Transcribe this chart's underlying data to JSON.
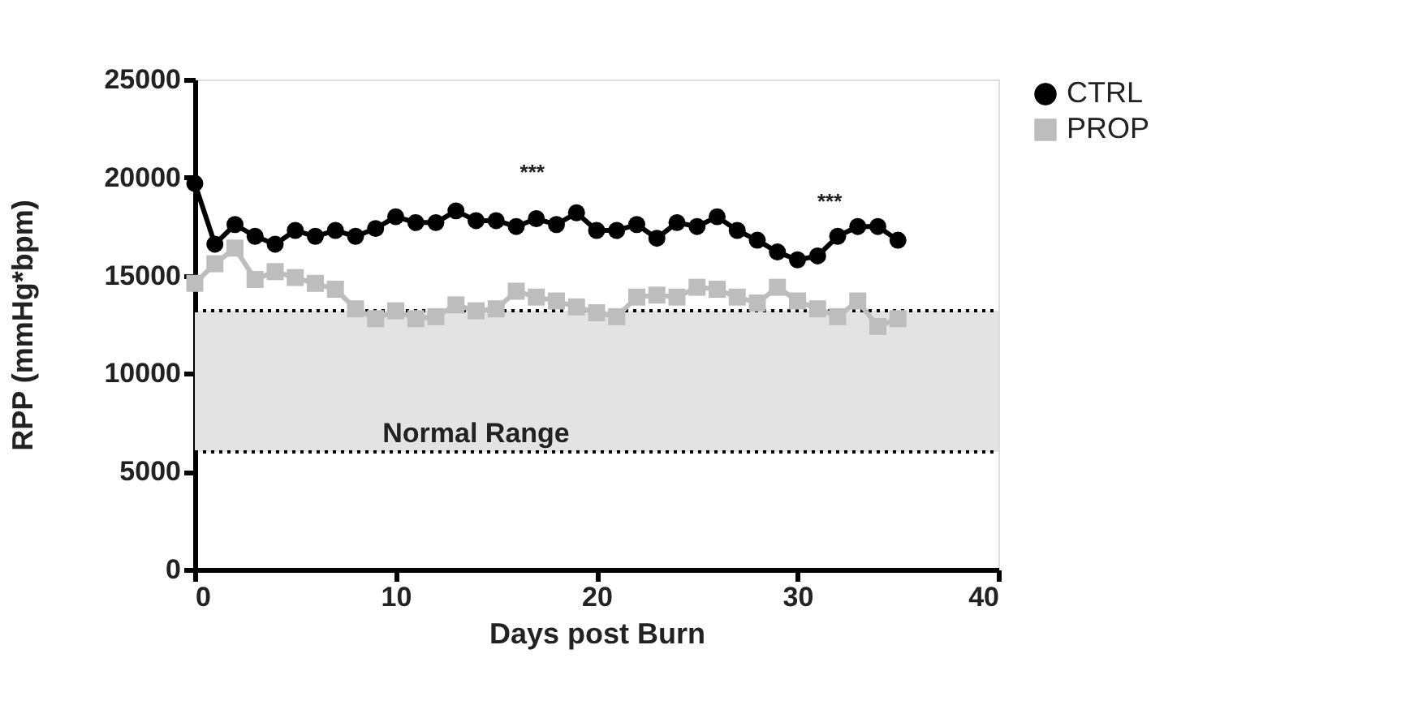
{
  "chart_data": {
    "type": "line",
    "xlabel": "Days post Burn",
    "ylabel": "RPP (mmHg*bpm)",
    "x": [
      0,
      1,
      2,
      3,
      4,
      5,
      6,
      7,
      8,
      9,
      10,
      11,
      12,
      13,
      14,
      15,
      16,
      17,
      18,
      19,
      20,
      21,
      22,
      23,
      24,
      25,
      26,
      27,
      28,
      29,
      30,
      31,
      32,
      33,
      34,
      35
    ],
    "series": [
      {
        "name": "CTRL",
        "color": "#000000",
        "marker": "circle",
        "values": [
          19700,
          16600,
          17600,
          17000,
          16600,
          17300,
          17000,
          17300,
          17000,
          17400,
          18000,
          17700,
          17700,
          18300,
          17800,
          17800,
          17500,
          17900,
          17600,
          18200,
          17300,
          17300,
          17600,
          16900,
          17700,
          17500,
          18000,
          17300,
          16800,
          16200,
          15800,
          16000,
          17000,
          17500,
          17500,
          16800
        ]
      },
      {
        "name": "PROP",
        "color": "#bdbdbd",
        "marker": "square",
        "values": [
          14600,
          15600,
          16400,
          14800,
          15200,
          14900,
          14600,
          14300,
          13300,
          12800,
          13200,
          12800,
          12900,
          13500,
          13200,
          13300,
          14200,
          13900,
          13700,
          13400,
          13100,
          12900,
          13900,
          14000,
          13900,
          14400,
          14300,
          13900,
          13600,
          14400,
          13700,
          13300,
          12900,
          13700,
          12400,
          12800
        ]
      }
    ],
    "xlim": [
      0,
      40
    ],
    "xticks": [
      0,
      10,
      20,
      30,
      40
    ],
    "ylim": [
      0,
      25000
    ],
    "yticks": [
      0,
      5000,
      10000,
      15000,
      20000,
      25000
    ],
    "bands": [
      {
        "axis": "y",
        "from": 6000,
        "to": 13200,
        "label": "Normal Range",
        "color": "#e3e3e3"
      }
    ],
    "ref_lines": [
      {
        "axis": "y",
        "value": 6000,
        "color": "#000000",
        "line_style": "dotted"
      },
      {
        "axis": "y",
        "value": 13200,
        "color": "#000000",
        "line_style": "dotted"
      }
    ],
    "annotations": [
      "***",
      "***"
    ],
    "legend": "top right",
    "grid": false,
    "line_style": "solid"
  }
}
